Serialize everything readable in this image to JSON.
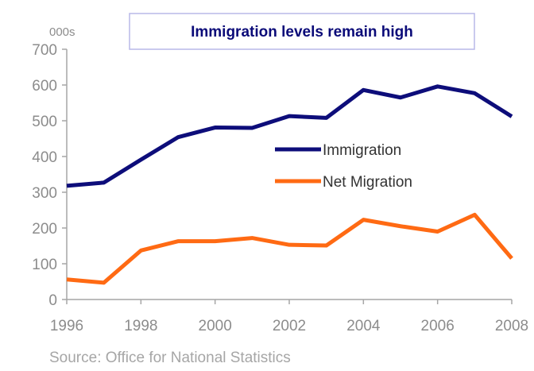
{
  "chart_data": {
    "type": "line",
    "title": "Immigration levels remain high",
    "y_unit_label": "000s",
    "source": "Source: Office for National Statistics",
    "x": [
      1996,
      1997,
      1998,
      1999,
      2000,
      2001,
      2002,
      2003,
      2004,
      2005,
      2006,
      2007,
      2008
    ],
    "x_tick_labels": [
      "1996",
      "1998",
      "2000",
      "2002",
      "2004",
      "2006",
      "2008"
    ],
    "y_tick_labels": [
      "0",
      "100",
      "200",
      "300",
      "400",
      "500",
      "600",
      "700"
    ],
    "ylim": [
      0,
      700
    ],
    "xlim": [
      1996,
      2008
    ],
    "grid": false,
    "legend_position": "center-right",
    "series": [
      {
        "name": "Immigration",
        "color": "#0d0d7a",
        "values": [
          318,
          327,
          391,
          454,
          481,
          480,
          513,
          508,
          586,
          565,
          596,
          577,
          512
        ]
      },
      {
        "name": "Net Migration",
        "color": "#ff6a13",
        "values": [
          56,
          47,
          137,
          163,
          163,
          172,
          153,
          151,
          223,
          205,
          190,
          237,
          115
        ]
      }
    ]
  }
}
